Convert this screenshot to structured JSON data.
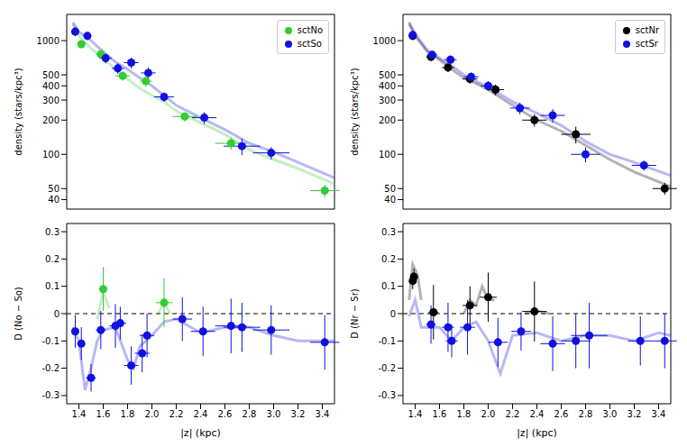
{
  "chart_data": [
    {
      "type": "scatter",
      "ylabel": "density (stars/kpc³)",
      "log": "y",
      "legend": "upper right",
      "tick_labels": "y",
      "xlim": [
        1.3,
        3.5
      ],
      "xticks": [
        1.4,
        1.6,
        1.8,
        {
          "value": 2,
          "label": "2.0"
        },
        2.2,
        2.4,
        2.6,
        2.8,
        {
          "value": 3,
          "label": "3.0"
        },
        3.2,
        3.4
      ],
      "ylim": [
        33,
        1700
      ],
      "yticks": [
        40,
        50,
        100,
        200,
        300,
        400,
        500,
        1000
      ],
      "series": [
        {
          "name": "sctNo",
          "color": "#33cc33",
          "marker": "circle",
          "x": [
            1.42,
            1.58,
            1.76,
            1.95,
            2.27,
            2.65,
            3.42
          ],
          "values": [
            930,
            760,
            490,
            440,
            215,
            125,
            48
          ],
          "xerr": [
            0.03,
            0.04,
            0.06,
            0.05,
            0.1,
            0.13,
            0.12
          ],
          "yerr": [
            70,
            60,
            45,
            45,
            20,
            15,
            6
          ],
          "curve_x": [
            1.35,
            1.4,
            1.5,
            1.6,
            1.7,
            1.8,
            1.9,
            2.0,
            2.1,
            2.2,
            2.4,
            2.6,
            2.8,
            3.0,
            3.2,
            3.5
          ],
          "curve_values": [
            1400,
            1100,
            850,
            700,
            560,
            460,
            380,
            330,
            290,
            240,
            190,
            150,
            110,
            90,
            75,
            55
          ]
        },
        {
          "name": "sctSo",
          "color": "#1010e0",
          "marker": "circle",
          "x": [
            1.37,
            1.47,
            1.62,
            1.72,
            1.83,
            1.97,
            2.1,
            2.43,
            2.74,
            2.98
          ],
          "values": [
            1200,
            1100,
            700,
            570,
            640,
            520,
            320,
            210,
            118,
            103
          ],
          "xerr": [
            0.03,
            0.03,
            0.05,
            0.05,
            0.06,
            0.06,
            0.08,
            0.1,
            0.15,
            0.15
          ],
          "yerr": [
            110,
            90,
            70,
            60,
            70,
            60,
            30,
            25,
            20,
            13
          ],
          "curve_x": [
            1.35,
            1.4,
            1.5,
            1.6,
            1.7,
            1.8,
            1.9,
            2.0,
            2.1,
            2.2,
            2.4,
            2.6,
            2.8,
            3.0,
            3.2,
            3.5
          ],
          "curve_values": [
            1450,
            1200,
            1000,
            800,
            650,
            560,
            470,
            400,
            330,
            270,
            210,
            165,
            125,
            105,
            85,
            62
          ]
        }
      ]
    },
    {
      "type": "scatter",
      "ylabel": "density (stars/kpc³)",
      "log": "y",
      "legend": "upper right",
      "tick_labels": "y",
      "xlim": [
        1.3,
        3.5
      ],
      "xticks": [
        1.4,
        1.6,
        1.8,
        {
          "value": 2,
          "label": "2.0"
        },
        2.2,
        2.4,
        2.6,
        2.8,
        {
          "value": 3,
          "label": "3.0"
        },
        3.2,
        3.4
      ],
      "ylim": [
        33,
        1700
      ],
      "yticks": [
        40,
        50,
        100,
        200,
        300,
        400,
        500,
        1000
      ],
      "series": [
        {
          "name": "sctNr",
          "color": "#000000",
          "marker": "circle",
          "x": [
            1.38,
            1.53,
            1.67,
            1.85,
            2.06,
            2.38,
            2.72,
            3.45
          ],
          "values": [
            1100,
            720,
            580,
            460,
            370,
            200,
            150,
            50
          ],
          "xerr": [
            0.03,
            0.04,
            0.05,
            0.06,
            0.07,
            0.1,
            0.12,
            0.1
          ],
          "yerr": [
            90,
            60,
            50,
            40,
            40,
            25,
            25,
            6
          ],
          "curve_x": [
            1.35,
            1.4,
            1.5,
            1.6,
            1.7,
            1.8,
            1.9,
            2.0,
            2.2,
            2.4,
            2.6,
            2.8,
            3.0,
            3.2,
            3.5
          ],
          "curve_values": [
            1450,
            1100,
            800,
            680,
            560,
            470,
            420,
            370,
            270,
            200,
            160,
            120,
            90,
            70,
            52
          ]
        },
        {
          "name": "sctSr",
          "color": "#1010e0",
          "marker": "circle",
          "x": [
            1.38,
            1.54,
            1.69,
            1.86,
            2.0,
            2.26,
            2.53,
            2.8,
            3.28
          ],
          "values": [
            1120,
            750,
            680,
            480,
            400,
            255,
            220,
            100,
            80
          ],
          "xerr": [
            0.03,
            0.04,
            0.05,
            0.06,
            0.06,
            0.08,
            0.1,
            0.12,
            0.1
          ],
          "yerr": [
            90,
            60,
            60,
            45,
            40,
            30,
            30,
            15,
            8
          ],
          "curve_x": [
            1.35,
            1.4,
            1.5,
            1.6,
            1.7,
            1.8,
            1.9,
            2.0,
            2.2,
            2.4,
            2.6,
            2.8,
            3.0,
            3.2,
            3.5
          ],
          "curve_values": [
            1400,
            1150,
            820,
            700,
            600,
            500,
            440,
            390,
            290,
            230,
            180,
            130,
            100,
            85,
            65
          ]
        }
      ]
    },
    {
      "type": "scatter",
      "xlabel": "|z| (kpc)",
      "ylabel": "D (No − So)",
      "hline": 0,
      "xlim": [
        1.3,
        3.5
      ],
      "xticks": [
        1.4,
        1.6,
        1.8,
        {
          "value": 2,
          "label": "2.0"
        },
        2.2,
        2.4,
        2.6,
        2.8,
        {
          "value": 3,
          "label": "3.0"
        },
        3.2,
        3.4
      ],
      "ylim": [
        -0.33,
        0.33
      ],
      "yticks": [
        -0.3,
        -0.2,
        -0.1,
        0,
        0.1,
        0.2,
        0.3
      ],
      "series": [
        {
          "name": "sctNo",
          "color": "#33cc33",
          "marker": "circle",
          "x": [
            1.6,
            2.1
          ],
          "values": [
            0.09,
            0.04
          ],
          "xerr": [
            0.03,
            0.07
          ],
          "yerr": [
            0.08,
            0.09
          ],
          "curve_x": [
            1.55,
            1.6,
            1.65,
            1.85,
            2.05,
            2.1,
            2.15
          ],
          "curve_values": [
            -0.02,
            0.08,
            0.02,
            null,
            0.0,
            0.04,
            0.0
          ]
        },
        {
          "name": "sctSo",
          "color": "#1010e0",
          "marker": "circle",
          "x": [
            1.37,
            1.42,
            1.5,
            1.58,
            1.7,
            1.74,
            1.83,
            1.92,
            1.96,
            2.25,
            2.42,
            2.65,
            2.74,
            2.98,
            3.42
          ],
          "values": [
            -0.065,
            -0.11,
            -0.235,
            -0.06,
            -0.045,
            -0.035,
            -0.19,
            -0.145,
            -0.08,
            -0.02,
            -0.065,
            -0.045,
            -0.05,
            -0.06,
            -0.105
          ],
          "xerr": [
            0.03,
            0.03,
            0.04,
            0.04,
            0.05,
            0.05,
            0.06,
            0.06,
            0.06,
            0.08,
            0.1,
            0.13,
            0.15,
            0.15,
            0.12
          ],
          "yerr": [
            0.06,
            0.06,
            0.05,
            0.07,
            0.08,
            0.06,
            0.07,
            0.07,
            0.08,
            0.08,
            0.09,
            0.1,
            0.09,
            0.09,
            0.1
          ],
          "curve_x": [
            1.35,
            1.4,
            1.45,
            1.5,
            1.55,
            1.6,
            1.7,
            1.8,
            1.85,
            1.9,
            2.0,
            2.1,
            2.2,
            2.4,
            2.6,
            2.8,
            3.0,
            3.2,
            3.5
          ],
          "curve_values": [
            -0.05,
            -0.1,
            -0.28,
            -0.2,
            -0.1,
            -0.06,
            -0.05,
            -0.17,
            -0.2,
            -0.12,
            -0.08,
            -0.03,
            -0.02,
            -0.07,
            -0.05,
            -0.05,
            -0.08,
            -0.1,
            -0.1
          ]
        }
      ]
    },
    {
      "type": "scatter",
      "xlabel": "|z| (kpc)",
      "ylabel": "D (Nr − Sr)",
      "hline": 0,
      "xlim": [
        1.3,
        3.5
      ],
      "xticks": [
        1.4,
        1.6,
        1.8,
        {
          "value": 2,
          "label": "2.0"
        },
        2.2,
        2.4,
        2.6,
        2.8,
        {
          "value": 3,
          "label": "3.0"
        },
        3.2,
        3.4
      ],
      "ylim": [
        -0.33,
        0.33
      ],
      "yticks": [
        -0.3,
        -0.2,
        -0.1,
        0,
        0.1,
        0.2,
        0.3
      ],
      "series": [
        {
          "name": "sctNr",
          "color": "#000000",
          "marker": "circle",
          "x": [
            1.38,
            1.39,
            1.55,
            1.85,
            2.0,
            2.38
          ],
          "values": [
            0.12,
            0.135,
            0.005,
            0.03,
            0.06,
            0.008
          ],
          "xerr": [
            0.02,
            0.02,
            0.04,
            0.06,
            0.07,
            0.1
          ],
          "yerr": [
            0.03,
            0.03,
            0.1,
            0.07,
            0.09,
            0.11
          ],
          "curve_x": [
            1.35,
            1.38,
            1.42,
            1.45,
            1.49,
            1.53,
            1.58,
            1.7,
            1.8,
            1.85,
            1.9,
            1.95,
            2.0,
            2.05,
            2.2,
            2.3,
            2.4,
            2.5
          ],
          "curve_values": [
            0.05,
            0.18,
            0.14,
            0.05,
            null,
            0.0,
            0.0,
            null,
            0.0,
            0.05,
            0.03,
            0.1,
            0.05,
            0.05,
            null,
            0.0,
            0.01,
            0.0
          ]
        },
        {
          "name": "sctSr",
          "color": "#1010e0",
          "marker": "circle",
          "x": [
            1.53,
            1.67,
            1.7,
            1.83,
            2.08,
            2.27,
            2.53,
            2.72,
            2.83,
            3.25,
            3.45
          ],
          "values": [
            -0.04,
            -0.05,
            -0.1,
            -0.05,
            -0.105,
            -0.065,
            -0.11,
            -0.1,
            -0.08,
            -0.1,
            -0.1
          ],
          "xerr": [
            0.04,
            0.05,
            0.05,
            0.06,
            0.08,
            0.08,
            0.1,
            0.12,
            0.15,
            0.1,
            0.1
          ],
          "yerr": [
            0.07,
            0.09,
            0.06,
            0.1,
            0.09,
            0.07,
            0.1,
            0.1,
            0.12,
            0.09,
            0.1
          ],
          "curve_x": [
            1.35,
            1.4,
            1.45,
            1.5,
            1.6,
            1.7,
            1.8,
            1.9,
            2.0,
            2.1,
            2.2,
            2.4,
            2.6,
            2.8,
            3.0,
            3.2,
            3.4,
            3.5
          ],
          "curve_values": [
            -0.01,
            0.05,
            -0.05,
            -0.05,
            -0.05,
            -0.1,
            -0.05,
            -0.03,
            -0.1,
            -0.22,
            -0.08,
            -0.07,
            -0.1,
            -0.08,
            -0.08,
            -0.1,
            -0.07,
            -0.08
          ]
        }
      ]
    }
  ]
}
